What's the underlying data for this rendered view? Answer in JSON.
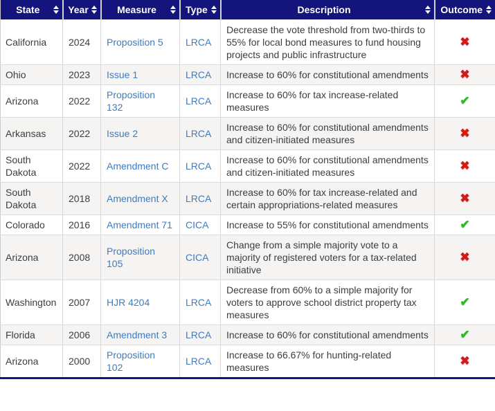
{
  "table": {
    "columns": [
      {
        "key": "state",
        "label": "State"
      },
      {
        "key": "year",
        "label": "Year"
      },
      {
        "key": "measure",
        "label": "Measure"
      },
      {
        "key": "type",
        "label": "Type"
      },
      {
        "key": "description",
        "label": "Description"
      },
      {
        "key": "outcome",
        "label": "Outcome"
      }
    ],
    "rows": [
      {
        "state": "California",
        "year": "2024",
        "measure": "Proposition 5",
        "type": "LRCA",
        "description": "Decrease the vote threshold from two-thirds to 55% for local bond measures to fund housing projects and public infrastructure",
        "outcome": "defeated"
      },
      {
        "state": "Ohio",
        "year": "2023",
        "measure": "Issue 1",
        "type": "LRCA",
        "description": "Increase to 60% for constitutional amendments",
        "outcome": "defeated"
      },
      {
        "state": "Arizona",
        "year": "2022",
        "measure": "Proposition 132",
        "type": "LRCA",
        "description": "Increase to 60% for tax increase-related measures",
        "outcome": "approved"
      },
      {
        "state": "Arkansas",
        "year": "2022",
        "measure": "Issue 2",
        "type": "LRCA",
        "description": "Increase to 60% for constitutional amendments and citizen-initiated measures",
        "outcome": "defeated"
      },
      {
        "state": "South Dakota",
        "year": "2022",
        "measure": "Amendment C",
        "type": "LRCA",
        "description": "Increase to 60% for constitutional amendments and citizen-initiated measures",
        "outcome": "defeated"
      },
      {
        "state": "South Dakota",
        "year": "2018",
        "measure": "Amendment X",
        "type": "LRCA",
        "description": "Increase to 60% for tax increase-related and certain appropriations-related measures",
        "outcome": "defeated"
      },
      {
        "state": "Colorado",
        "year": "2016",
        "measure": "Amendment 71",
        "type": "CICA",
        "description": "Increase to 55% for constitutional amendments",
        "outcome": "approved"
      },
      {
        "state": "Arizona",
        "year": "2008",
        "measure": "Proposition 105",
        "type": "CICA",
        "description": "Change from a simple majority vote to a majority of registered voters for a tax-related initiative",
        "outcome": "defeated"
      },
      {
        "state": "Washington",
        "year": "2007",
        "measure": "HJR 4204",
        "type": "LRCA",
        "description": "Decrease from 60% to a simple majority for voters to approve school district property tax measures",
        "outcome": "approved"
      },
      {
        "state": "Florida",
        "year": "2006",
        "measure": "Amendment 3",
        "type": "LRCA",
        "description": "Increase to 60% for constitutional amendments",
        "outcome": "approved"
      },
      {
        "state": "Arizona",
        "year": "2000",
        "measure": "Proposition 102",
        "type": "LRCA",
        "description": "Increase to 66.67% for hunting-related measures",
        "outcome": "defeated"
      }
    ]
  },
  "icons": {
    "sort": "sort-arrows-icon",
    "approved": "✔",
    "defeated": "✖"
  },
  "colors": {
    "header_bg": "#14147d",
    "header_text": "#ffffff",
    "link": "#3b7cc4",
    "approved": "#2eb82e",
    "defeated": "#d11a1a",
    "row_alt": "#f5f4f2"
  }
}
